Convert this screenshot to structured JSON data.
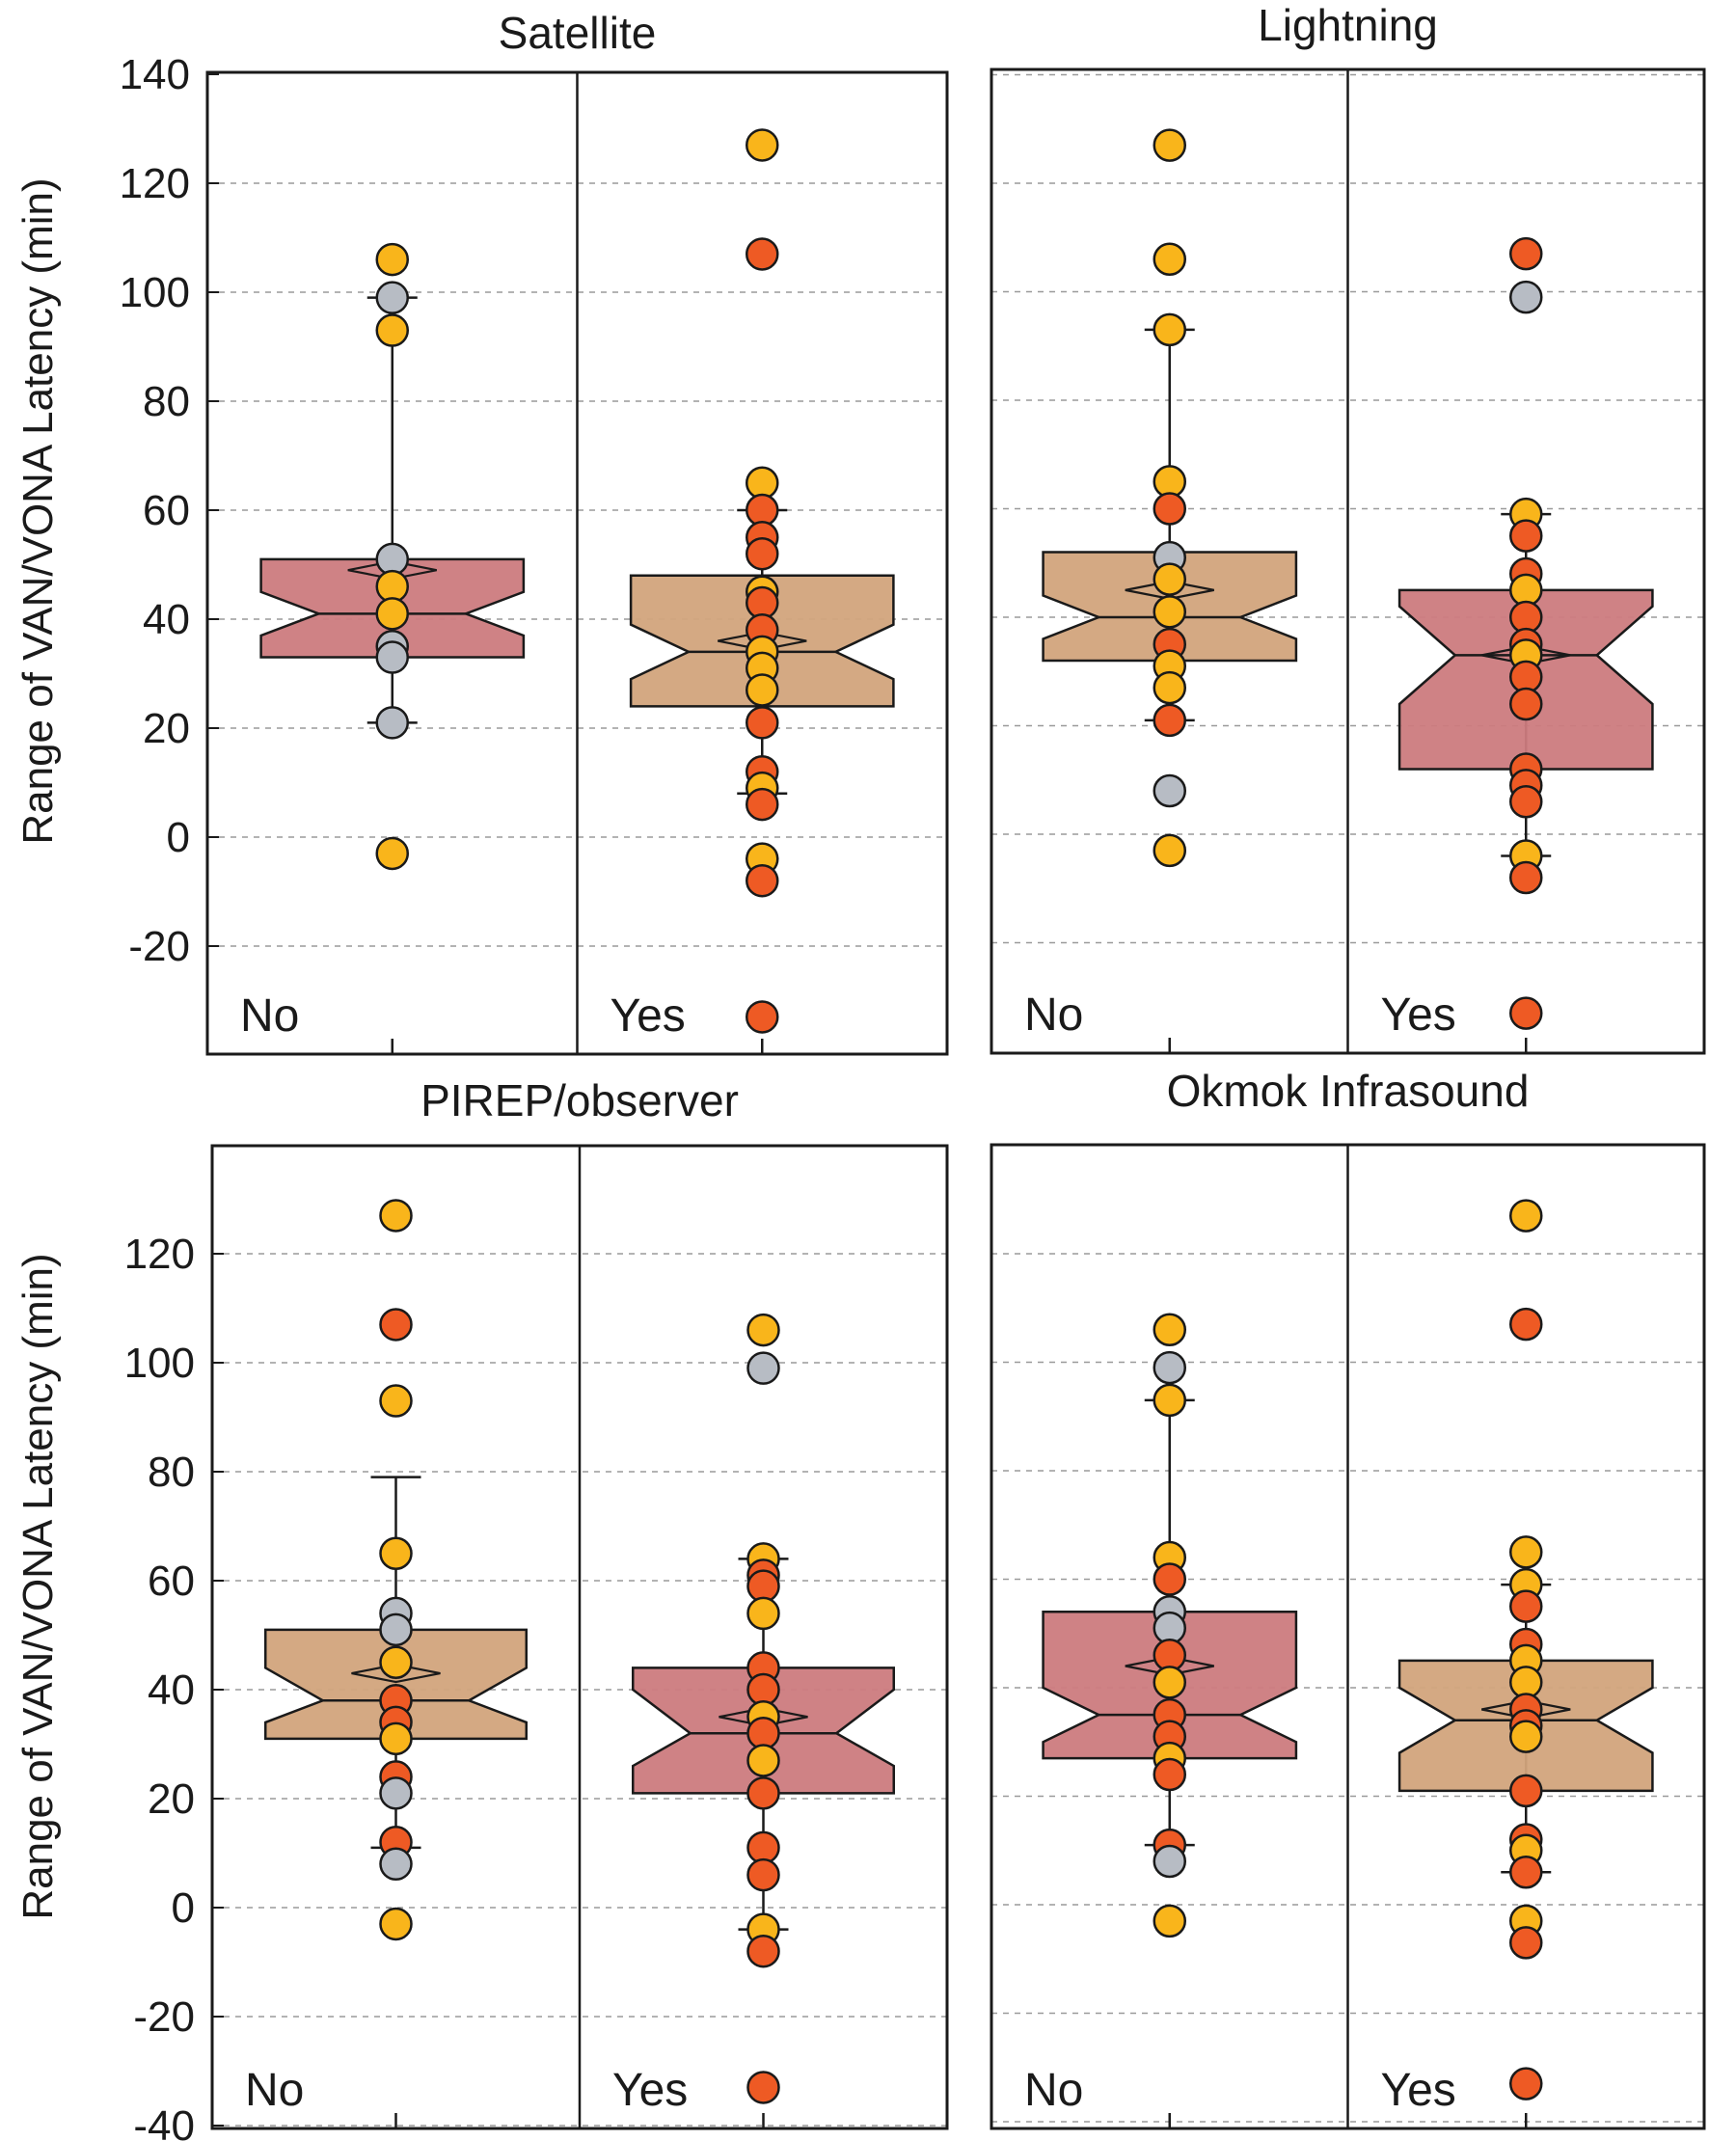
{
  "ylabel_top": "Range of VAN/VONA Latency (min)",
  "ylabel_bottom": "Range of VAN/VONA Latency (min)",
  "colors": {
    "box_red": "#cc7b7e",
    "box_tan": "#d2a47c",
    "dot_yellow": "#f9b51b",
    "dot_orange": "#ee5a24",
    "dot_gray": "#b7bcc4",
    "outline": "#1a1a1a",
    "grid": "#9a9a9a"
  },
  "chart_data": [
    {
      "type": "box",
      "title": "Satellite",
      "ylim": [
        -40,
        140
      ],
      "yticks": [
        140,
        120,
        100,
        80,
        60,
        40,
        20,
        0,
        -20
      ],
      "groups": [
        {
          "label": "No",
          "fill": "box_red",
          "box": {
            "q1": 33,
            "median": 41,
            "q3": 51,
            "notch_low": 37,
            "notch_high": 45,
            "mean": 49,
            "whisker_low": 21,
            "whisker_high": 99
          },
          "points": [
            {
              "v": 106,
              "c": "yellow"
            },
            {
              "v": 99,
              "c": "gray"
            },
            {
              "v": 93,
              "c": "yellow"
            },
            {
              "v": 51,
              "c": "gray"
            },
            {
              "v": 46,
              "c": "yellow"
            },
            {
              "v": 41,
              "c": "yellow"
            },
            {
              "v": 35,
              "c": "gray"
            },
            {
              "v": 33,
              "c": "gray"
            },
            {
              "v": 21,
              "c": "gray"
            },
            {
              "v": -3,
              "c": "yellow"
            }
          ]
        },
        {
          "label": "Yes",
          "fill": "box_tan",
          "box": {
            "q1": 24,
            "median": 34,
            "q3": 48,
            "notch_low": 29,
            "notch_high": 39,
            "mean": 36,
            "whisker_low": 8,
            "whisker_high": 60
          },
          "points": [
            {
              "v": 127,
              "c": "yellow"
            },
            {
              "v": 107,
              "c": "orange"
            },
            {
              "v": 65,
              "c": "yellow"
            },
            {
              "v": 60,
              "c": "orange"
            },
            {
              "v": 55,
              "c": "orange"
            },
            {
              "v": 52,
              "c": "orange"
            },
            {
              "v": 45,
              "c": "yellow"
            },
            {
              "v": 43,
              "c": "orange"
            },
            {
              "v": 38,
              "c": "orange"
            },
            {
              "v": 34,
              "c": "yellow"
            },
            {
              "v": 31,
              "c": "yellow"
            },
            {
              "v": 27,
              "c": "yellow"
            },
            {
              "v": 21,
              "c": "orange"
            },
            {
              "v": 12,
              "c": "orange"
            },
            {
              "v": 9,
              "c": "yellow"
            },
            {
              "v": 6,
              "c": "orange"
            },
            {
              "v": -4,
              "c": "yellow"
            },
            {
              "v": -8,
              "c": "orange"
            },
            {
              "v": -33,
              "c": "orange"
            }
          ]
        }
      ]
    },
    {
      "type": "box",
      "title": "Lightning",
      "ylim": [
        -40,
        140
      ],
      "yticks": [],
      "groups": [
        {
          "label": "No",
          "fill": "box_tan",
          "box": {
            "q1": 32,
            "median": 40,
            "q3": 52,
            "notch_low": 36,
            "notch_high": 44,
            "mean": 45,
            "whisker_low": 21,
            "whisker_high": 93
          },
          "points": [
            {
              "v": 127,
              "c": "yellow"
            },
            {
              "v": 106,
              "c": "yellow"
            },
            {
              "v": 93,
              "c": "yellow"
            },
            {
              "v": 65,
              "c": "yellow"
            },
            {
              "v": 60,
              "c": "orange"
            },
            {
              "v": 51,
              "c": "gray"
            },
            {
              "v": 47,
              "c": "yellow"
            },
            {
              "v": 41,
              "c": "yellow"
            },
            {
              "v": 35,
              "c": "orange"
            },
            {
              "v": 31,
              "c": "yellow"
            },
            {
              "v": 27,
              "c": "yellow"
            },
            {
              "v": 21,
              "c": "orange"
            },
            {
              "v": 8,
              "c": "gray"
            },
            {
              "v": -3,
              "c": "yellow"
            }
          ]
        },
        {
          "label": "Yes",
          "fill": "box_red",
          "box": {
            "q1": 12,
            "median": 33,
            "q3": 45,
            "notch_low": 24,
            "notch_high": 42,
            "mean": 33,
            "whisker_low": -4,
            "whisker_high": 59
          },
          "points": [
            {
              "v": 107,
              "c": "orange"
            },
            {
              "v": 99,
              "c": "gray"
            },
            {
              "v": 59,
              "c": "yellow"
            },
            {
              "v": 55,
              "c": "orange"
            },
            {
              "v": 48,
              "c": "orange"
            },
            {
              "v": 45,
              "c": "yellow"
            },
            {
              "v": 40,
              "c": "orange"
            },
            {
              "v": 35,
              "c": "orange"
            },
            {
              "v": 33,
              "c": "yellow"
            },
            {
              "v": 29,
              "c": "orange"
            },
            {
              "v": 24,
              "c": "orange"
            },
            {
              "v": 12,
              "c": "orange"
            },
            {
              "v": 9,
              "c": "orange"
            },
            {
              "v": 6,
              "c": "orange"
            },
            {
              "v": -4,
              "c": "yellow"
            },
            {
              "v": -8,
              "c": "orange"
            },
            {
              "v": -33,
              "c": "orange"
            }
          ]
        }
      ]
    },
    {
      "type": "box",
      "title": "PIREP/observer",
      "ylim": [
        -40,
        140
      ],
      "yticks": [
        120,
        100,
        80,
        60,
        40,
        20,
        0,
        -20,
        -40
      ],
      "groups": [
        {
          "label": "No",
          "fill": "box_tan",
          "box": {
            "q1": 31,
            "median": 38,
            "q3": 51,
            "notch_low": 34,
            "notch_high": 44,
            "mean": 43,
            "whisker_low": 11,
            "whisker_high": 79
          },
          "points": [
            {
              "v": 127,
              "c": "yellow"
            },
            {
              "v": 107,
              "c": "orange"
            },
            {
              "v": 93,
              "c": "yellow"
            },
            {
              "v": 65,
              "c": "yellow"
            },
            {
              "v": 54,
              "c": "gray"
            },
            {
              "v": 51,
              "c": "gray"
            },
            {
              "v": 45,
              "c": "yellow"
            },
            {
              "v": 38,
              "c": "orange"
            },
            {
              "v": 34,
              "c": "orange"
            },
            {
              "v": 31,
              "c": "yellow"
            },
            {
              "v": 24,
              "c": "orange"
            },
            {
              "v": 21,
              "c": "gray"
            },
            {
              "v": 12,
              "c": "orange"
            },
            {
              "v": 8,
              "c": "gray"
            },
            {
              "v": -3,
              "c": "yellow"
            }
          ]
        },
        {
          "label": "Yes",
          "fill": "box_red",
          "box": {
            "q1": 21,
            "median": 32,
            "q3": 44,
            "notch_low": 26,
            "notch_high": 40,
            "mean": 35,
            "whisker_low": -4,
            "whisker_high": 64
          },
          "points": [
            {
              "v": 106,
              "c": "yellow"
            },
            {
              "v": 99,
              "c": "gray"
            },
            {
              "v": 64,
              "c": "yellow"
            },
            {
              "v": 61,
              "c": "orange"
            },
            {
              "v": 59,
              "c": "orange"
            },
            {
              "v": 54,
              "c": "yellow"
            },
            {
              "v": 44,
              "c": "orange"
            },
            {
              "v": 40,
              "c": "orange"
            },
            {
              "v": 35,
              "c": "yellow"
            },
            {
              "v": 32,
              "c": "orange"
            },
            {
              "v": 27,
              "c": "yellow"
            },
            {
              "v": 21,
              "c": "orange"
            },
            {
              "v": 11,
              "c": "orange"
            },
            {
              "v": 6,
              "c": "orange"
            },
            {
              "v": -4,
              "c": "yellow"
            },
            {
              "v": -8,
              "c": "orange"
            },
            {
              "v": -33,
              "c": "orange"
            }
          ]
        }
      ]
    },
    {
      "type": "box",
      "title": "Okmok Infrasound",
      "ylim": [
        -40,
        140
      ],
      "yticks": [],
      "groups": [
        {
          "label": "No",
          "fill": "box_red",
          "box": {
            "q1": 27,
            "median": 35,
            "q3": 54,
            "notch_low": 30,
            "notch_high": 40,
            "mean": 44,
            "whisker_low": 11,
            "whisker_high": 93
          },
          "points": [
            {
              "v": 106,
              "c": "yellow"
            },
            {
              "v": 99,
              "c": "gray"
            },
            {
              "v": 93,
              "c": "yellow"
            },
            {
              "v": 64,
              "c": "yellow"
            },
            {
              "v": 60,
              "c": "orange"
            },
            {
              "v": 54,
              "c": "gray"
            },
            {
              "v": 51,
              "c": "gray"
            },
            {
              "v": 46,
              "c": "orange"
            },
            {
              "v": 41,
              "c": "yellow"
            },
            {
              "v": 35,
              "c": "orange"
            },
            {
              "v": 31,
              "c": "orange"
            },
            {
              "v": 27,
              "c": "yellow"
            },
            {
              "v": 24,
              "c": "orange"
            },
            {
              "v": 11,
              "c": "orange"
            },
            {
              "v": 8,
              "c": "gray"
            },
            {
              "v": -3,
              "c": "yellow"
            }
          ]
        },
        {
          "label": "Yes",
          "fill": "box_tan",
          "box": {
            "q1": 21,
            "median": 34,
            "q3": 45,
            "notch_low": 28,
            "notch_high": 40,
            "mean": 36,
            "whisker_low": 6,
            "whisker_high": 59
          },
          "points": [
            {
              "v": 127,
              "c": "yellow"
            },
            {
              "v": 107,
              "c": "orange"
            },
            {
              "v": 65,
              "c": "yellow"
            },
            {
              "v": 59,
              "c": "yellow"
            },
            {
              "v": 55,
              "c": "orange"
            },
            {
              "v": 48,
              "c": "orange"
            },
            {
              "v": 45,
              "c": "yellow"
            },
            {
              "v": 41,
              "c": "yellow"
            },
            {
              "v": 36,
              "c": "orange"
            },
            {
              "v": 33,
              "c": "orange"
            },
            {
              "v": 31,
              "c": "yellow"
            },
            {
              "v": 21,
              "c": "orange"
            },
            {
              "v": 12,
              "c": "orange"
            },
            {
              "v": 10,
              "c": "yellow"
            },
            {
              "v": 6,
              "c": "orange"
            },
            {
              "v": -3,
              "c": "yellow"
            },
            {
              "v": -7,
              "c": "orange"
            },
            {
              "v": -33,
              "c": "orange"
            }
          ]
        }
      ]
    }
  ]
}
